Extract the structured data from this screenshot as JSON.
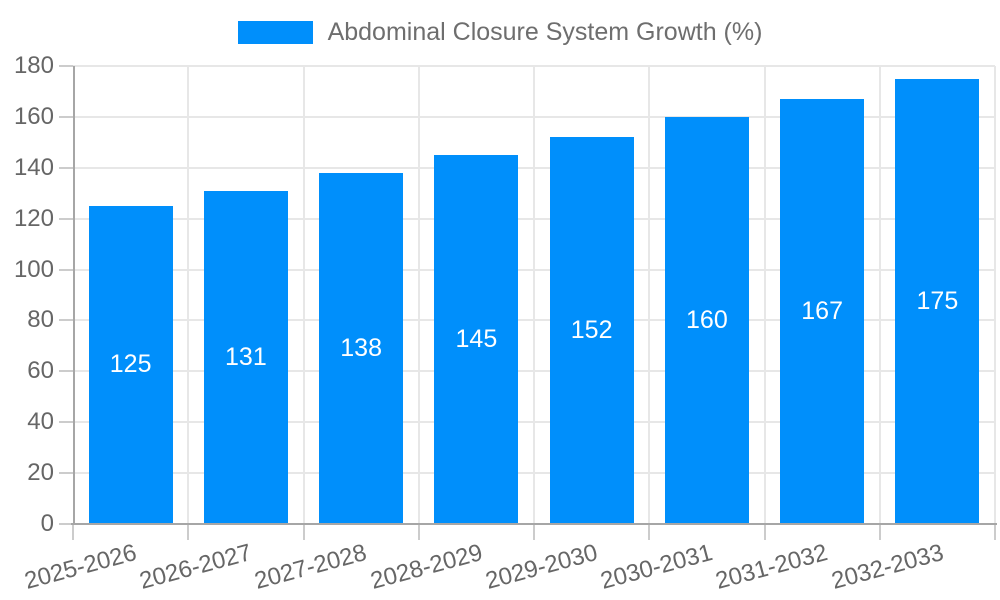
{
  "chart_data": {
    "type": "bar",
    "title": "Abdominal Closure System Growth (%)",
    "categories": [
      "2025-2026",
      "2026-2027",
      "2027-2028",
      "2028-2029",
      "2029-2030",
      "2030-2031",
      "2031-2032",
      "2032-2033"
    ],
    "values": [
      125,
      131,
      138,
      145,
      152,
      160,
      167,
      175
    ],
    "ylim": [
      0,
      180
    ],
    "ytick_step": 20,
    "yticks": [
      0,
      20,
      40,
      60,
      80,
      100,
      120,
      140,
      160,
      180
    ],
    "xlabel": "",
    "ylabel": "",
    "legend_position": "top",
    "grid": true,
    "value_label_position": "inside-center",
    "colors": {
      "bar": "#008FFB",
      "value_label": "#ffffff",
      "axis_line": "#a6a6a6",
      "grid_line": "#e7e7e7",
      "tick": "#cccccc",
      "axis_text": "#666666",
      "legend_text": "#6e6e6e",
      "background": "#ffffff"
    }
  }
}
